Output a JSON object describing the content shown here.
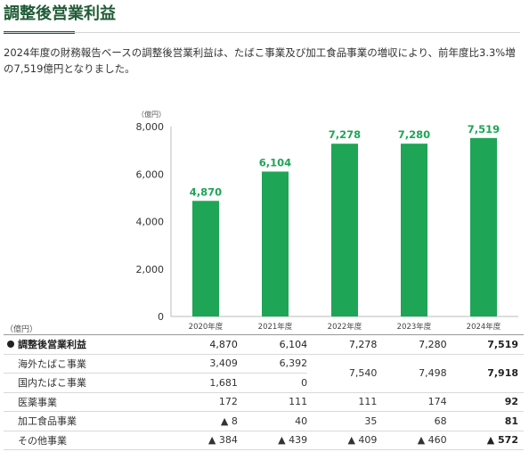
{
  "title": "調整後営業利益",
  "description": "2024年度の財務報告ベースの調整後営業利益は、たばこ事業及び加工食品事業の増収により、前年度比3.3%増の7,519億円となりました。",
  "colors": {
    "bar": "#1ea556",
    "title": "#1f5b36",
    "label": "#1ea556"
  },
  "chart_data": {
    "type": "bar",
    "ylabel": "（億円）",
    "ylim": [
      0,
      8000
    ],
    "yticks": [
      0,
      2000,
      4000,
      6000,
      8000
    ],
    "ytick_labels": [
      "0",
      "2,000",
      "4,000",
      "6,000",
      "8,000"
    ],
    "categories": [
      "2020年度",
      "2021年度",
      "2022年度",
      "2023年度",
      "2024年度"
    ],
    "values": [
      4870,
      6104,
      7278,
      7280,
      7519
    ],
    "value_labels": [
      "4,870",
      "6,104",
      "7,278",
      "7,280",
      "7,519"
    ],
    "grid": false
  },
  "table": {
    "unit": "（億円）",
    "rows": [
      {
        "label": "調整後営業利益",
        "values": [
          "4,870",
          "6,104",
          "7,278",
          "7,280",
          "7,519"
        ]
      },
      {
        "label": "海外たばこ事業",
        "values": [
          "3,409",
          "6,392"
        ]
      },
      {
        "label": "国内たばこ事業",
        "values": [
          "1,681",
          "0"
        ]
      },
      {
        "merged_values": [
          "7,540",
          "7,498",
          "7,918"
        ]
      },
      {
        "label": "医薬事業",
        "values": [
          "172",
          "111",
          "111",
          "174",
          "92"
        ]
      },
      {
        "label": "加工食品事業",
        "values": [
          "▲ 8",
          "40",
          "35",
          "68",
          "81"
        ]
      },
      {
        "label": "その他事業",
        "values": [
          "▲ 384",
          "▲ 439",
          "▲ 409",
          "▲ 460",
          "▲ 572"
        ]
      }
    ]
  }
}
